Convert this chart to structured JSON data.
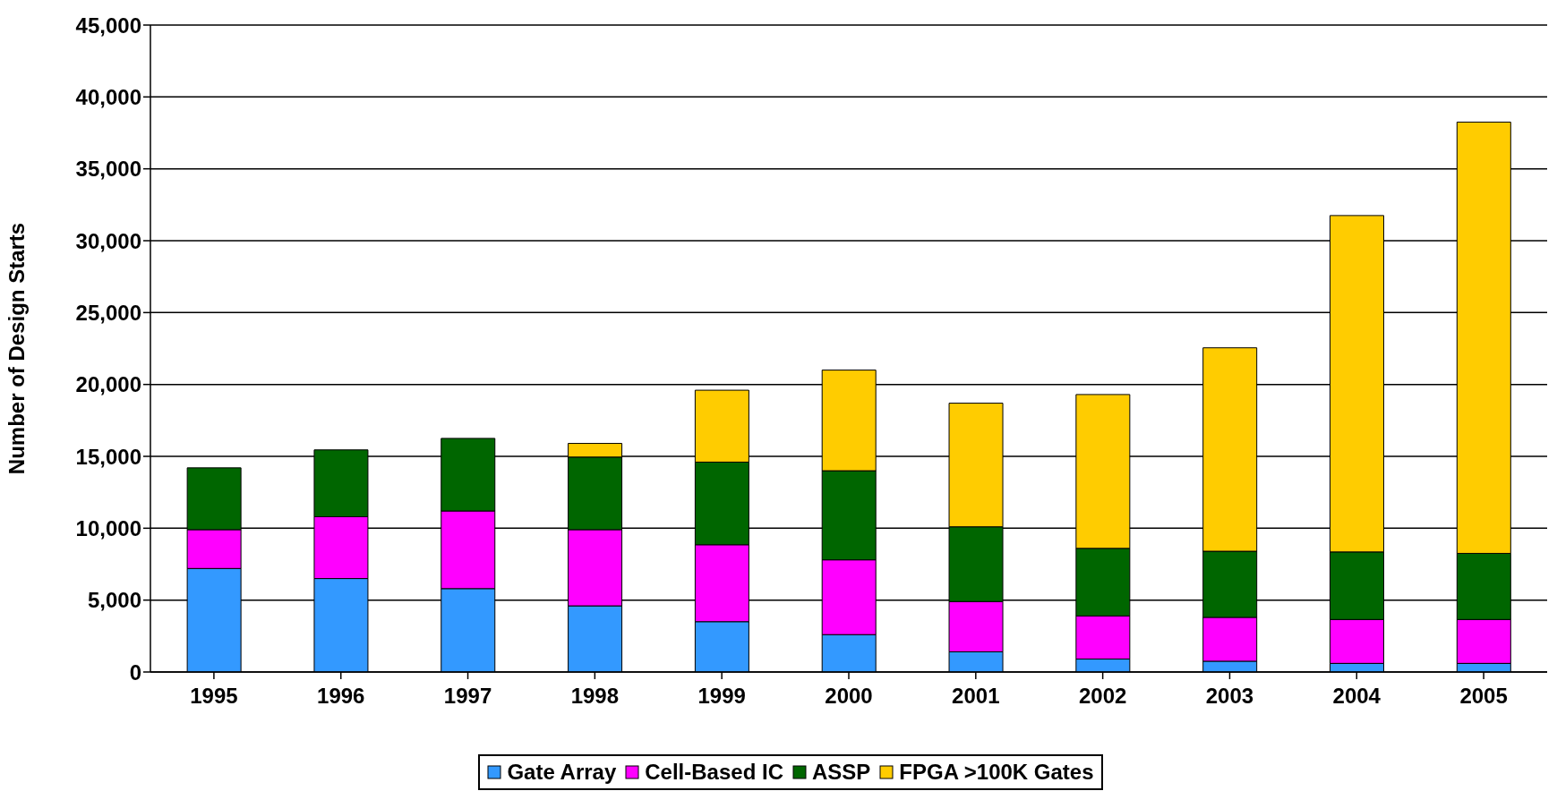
{
  "chart_data": {
    "type": "bar",
    "stacked": true,
    "ylabel": "Number of Design Starts",
    "categories": [
      "1995",
      "1996",
      "1997",
      "1998",
      "1999",
      "2000",
      "2001",
      "2002",
      "2003",
      "2004",
      "2005"
    ],
    "series": [
      {
        "name": "Gate Array",
        "color": "#3399ff",
        "values": [
          7200,
          6500,
          5800,
          4600,
          3500,
          2600,
          1400,
          900,
          750,
          600,
          600
        ]
      },
      {
        "name": "Cell-Based IC",
        "color": "#ff00ff",
        "values": [
          2700,
          4300,
          5400,
          5300,
          5350,
          5200,
          3500,
          3000,
          3050,
          3050,
          3050
        ]
      },
      {
        "name": "ASSP",
        "color": "#006600",
        "values": [
          4300,
          4650,
          5050,
          5050,
          5750,
          6200,
          5200,
          4700,
          4600,
          4700,
          4600
        ]
      },
      {
        "name": "FPGA >100K Gates",
        "color": "#ffcc00",
        "values": [
          0,
          0,
          0,
          950,
          5000,
          7000,
          8600,
          10700,
          14150,
          23400,
          30000
        ]
      }
    ],
    "ylim": [
      0,
      45000
    ],
    "yticks": [
      {
        "value": 0,
        "label": "0"
      },
      {
        "value": 5000,
        "label": "5,000"
      },
      {
        "value": 10000,
        "label": "10,000"
      },
      {
        "value": 15000,
        "label": "15,000"
      },
      {
        "value": 20000,
        "label": "20,000"
      },
      {
        "value": 25000,
        "label": "25,000"
      },
      {
        "value": 30000,
        "label": "30,000"
      },
      {
        "value": 35000,
        "label": "35,000"
      },
      {
        "value": 40000,
        "label": "40,000"
      },
      {
        "value": 45000,
        "label": "45,000"
      }
    ],
    "grid": "y",
    "legend": "bottom"
  }
}
